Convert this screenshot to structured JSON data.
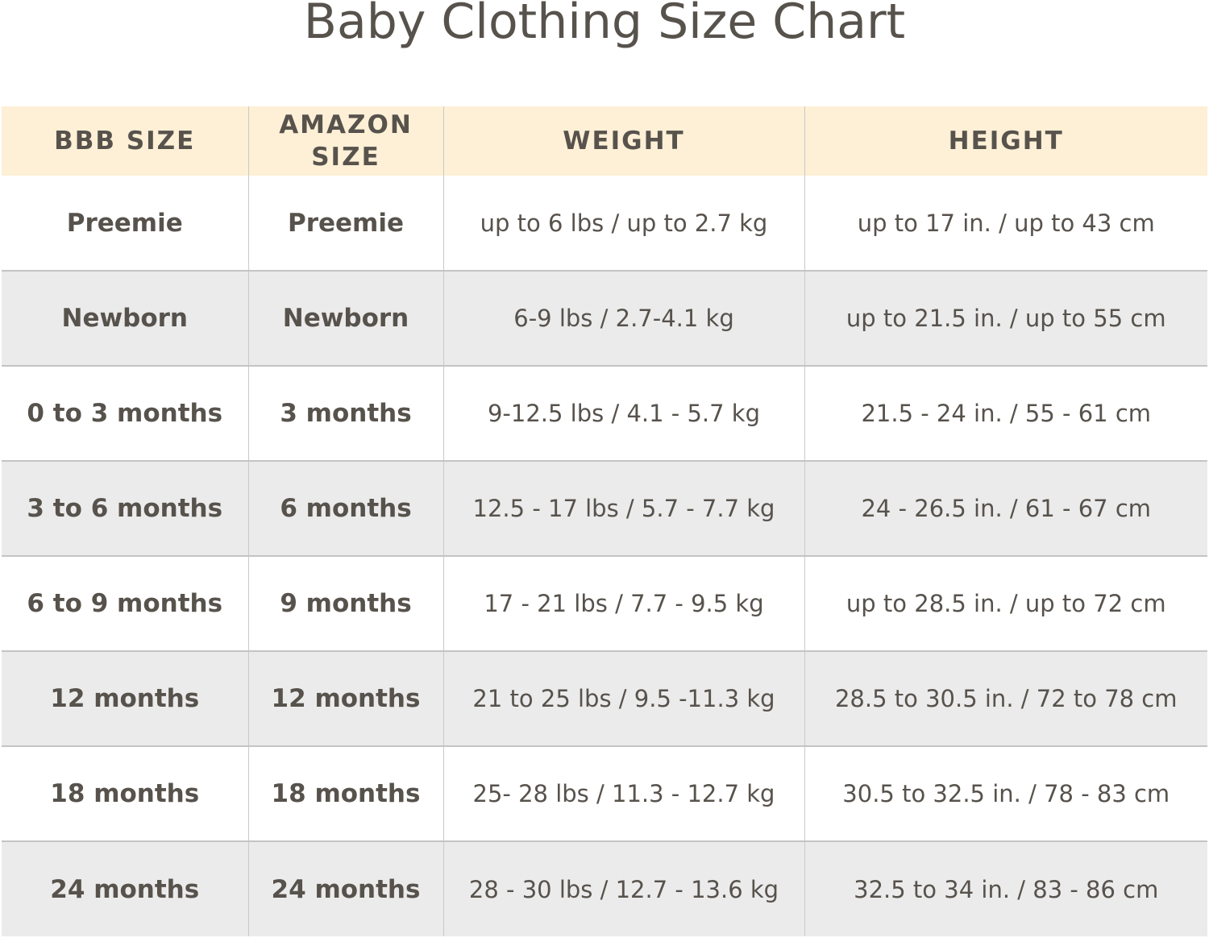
{
  "title": "Baby Clothing Size Chart",
  "colors": {
    "header_bg": "#fdf0d6",
    "alt_row_bg": "#ebebeb",
    "text": "#57524c"
  },
  "headers": [
    "BBB SIZE",
    "AMAZON SIZE",
    "WEIGHT",
    "HEIGHT"
  ],
  "rows": [
    [
      "Preemie",
      "Preemie",
      "up to 6 lbs / up to 2.7 kg",
      "up to 17 in. / up to 43 cm"
    ],
    [
      "Newborn",
      "Newborn",
      "6-9 lbs / 2.7-4.1 kg",
      "up to 21.5 in. / up to 55 cm"
    ],
    [
      "0 to 3 months",
      "3 months",
      "9-12.5 lbs / 4.1 - 5.7 kg",
      "21.5 - 24 in. / 55 - 61 cm"
    ],
    [
      "3 to 6 months",
      "6 months",
      "12.5 - 17 lbs / 5.7 - 7.7 kg",
      "24 - 26.5 in. / 61 - 67 cm"
    ],
    [
      "6 to 9 months",
      "9 months",
      "17 - 21 lbs / 7.7 - 9.5 kg",
      "up to 28.5 in. / up to 72 cm"
    ],
    [
      "12 months",
      "12 months",
      "21 to 25 lbs / 9.5 -11.3 kg",
      "28.5 to 30.5 in. / 72 to 78 cm"
    ],
    [
      "18 months",
      "18 months",
      "25- 28 lbs / 11.3 - 12.7 kg",
      "30.5 to 32.5 in. / 78 - 83 cm"
    ],
    [
      "24 months",
      "24 months",
      "28 - 30 lbs / 12.7 - 13.6 kg",
      "32.5 to 34 in. / 83 - 86 cm"
    ]
  ]
}
